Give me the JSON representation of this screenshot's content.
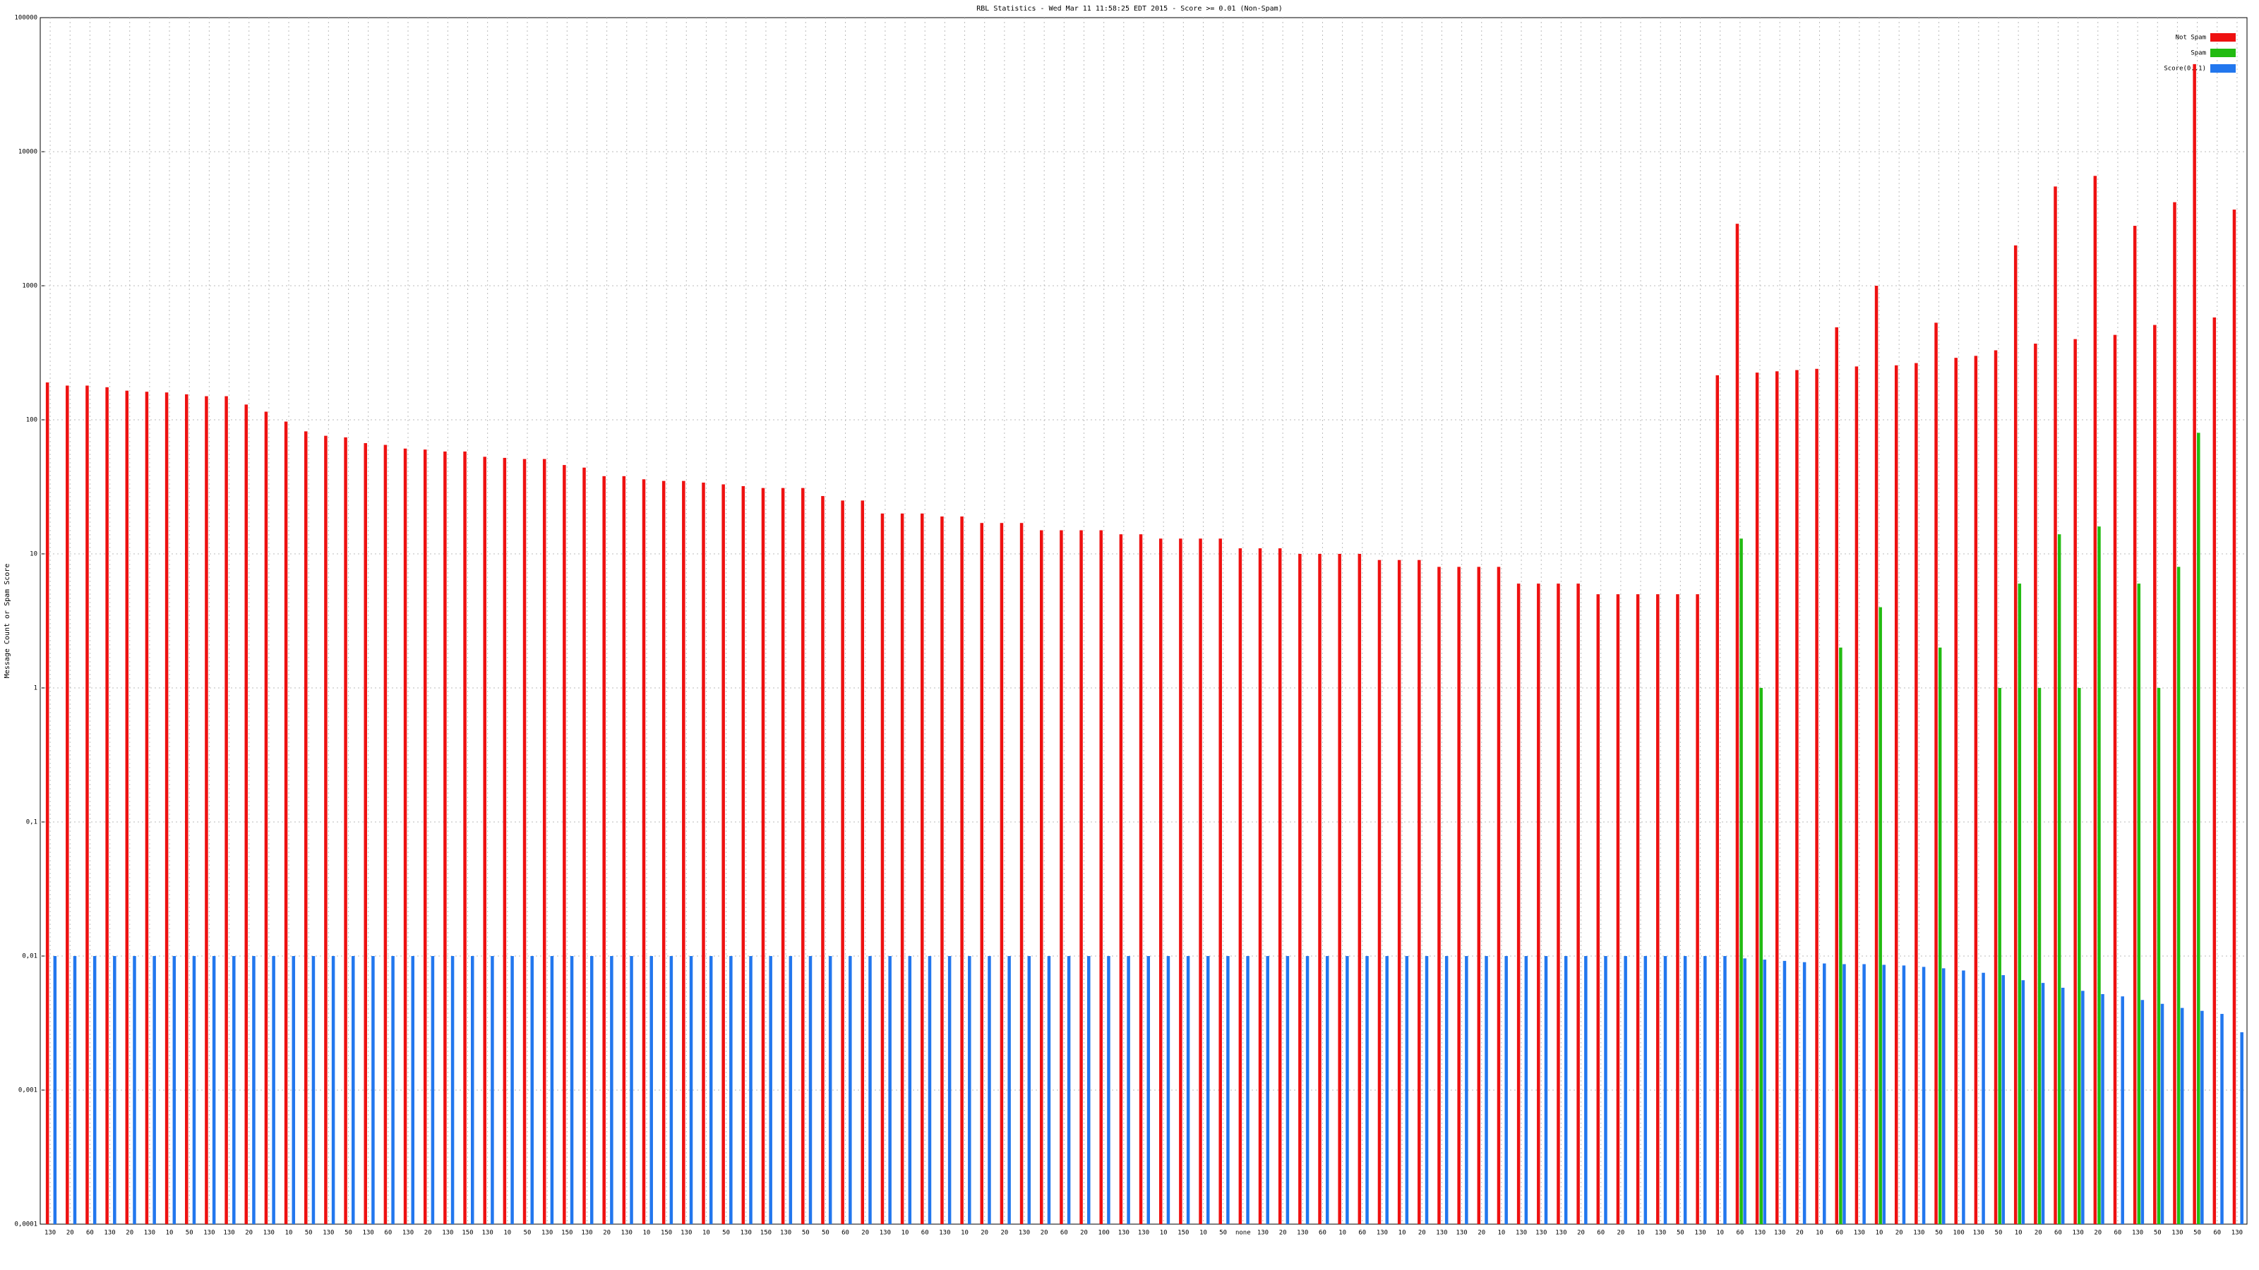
{
  "chart_data": {
    "type": "bar",
    "title": "RBL Statistics - Wed Mar 11 11:58:25 EDT 2015 - Score >= 0.01 (Non-Spam)",
    "y_label": "Message Count or Spam Score",
    "log_scale": true,
    "grid": true,
    "legend": "top-right",
    "ylim": [
      0.0001,
      100000
    ],
    "yticks": [
      {
        "value": 0.0001,
        "label": "0,0001"
      },
      {
        "value": 0.001,
        "label": "0,001"
      },
      {
        "value": 0.01,
        "label": "0,01"
      },
      {
        "value": 0.1,
        "label": "0,1"
      },
      1,
      10,
      100,
      1000,
      10000,
      100000
    ],
    "categories": [
      "130",
      "20",
      "60",
      "130",
      "20",
      "130",
      "10",
      "50",
      "130",
      "130",
      "20",
      "130",
      "10",
      "50",
      "130",
      "50",
      "130",
      "60",
      "130",
      "20",
      "130",
      "150",
      "130",
      "10",
      "50",
      "130",
      "150",
      "130",
      "20",
      "130",
      "10",
      "150",
      "130",
      "10",
      "50",
      "130",
      "150",
      "130",
      "50",
      "50",
      "60",
      "20",
      "130",
      "10",
      "60",
      "130",
      "10",
      "20",
      "20",
      "130",
      "20",
      "60",
      "20",
      "100",
      "130",
      "130",
      "10",
      "150",
      "10",
      "50",
      "none",
      "130",
      "20",
      "130",
      "60",
      "10",
      "60",
      "130",
      "10",
      "20",
      "130",
      "130",
      "20",
      "10",
      "130",
      "130",
      "130",
      "20",
      "60",
      "20",
      "10",
      "130",
      "50",
      "130",
      "10",
      "60",
      "130",
      "130",
      "20",
      "10",
      "60",
      "130",
      "10",
      "20",
      "130",
      "50",
      "100",
      "130",
      "50",
      "10",
      "20",
      "60",
      "130",
      "20",
      "60",
      "130",
      "50",
      "130",
      "50",
      "60",
      "130"
    ],
    "series": [
      {
        "name": "Not Spam",
        "color": "#ee1111",
        "values": [
          190,
          180,
          180,
          175,
          165,
          162,
          160,
          155,
          150,
          150,
          130,
          115,
          97,
          82,
          76,
          74,
          67,
          65,
          61,
          60,
          58,
          58,
          53,
          52,
          51,
          51,
          46,
          44,
          38,
          38,
          36,
          35,
          35,
          34,
          33,
          32,
          31,
          31,
          31,
          27,
          25,
          25,
          20,
          20,
          20,
          19,
          19,
          17,
          17,
          17,
          15,
          15,
          15,
          15,
          14,
          14,
          13,
          13,
          13,
          13,
          11,
          11,
          11,
          10,
          10,
          10,
          10,
          9,
          9,
          9,
          8,
          8,
          8,
          8,
          6,
          6,
          6,
          6,
          5,
          5,
          5,
          5,
          5,
          5,
          215,
          2900,
          225,
          230,
          235,
          240,
          490,
          250,
          1000,
          255,
          265,
          530,
          290,
          300,
          330,
          2000,
          370,
          5500,
          400,
          6600,
          430,
          2800,
          510,
          4200,
          45000,
          580,
          3700
        ]
      },
      {
        "name": "Spam",
        "color": "#22bb11",
        "values": [
          null,
          null,
          null,
          null,
          null,
          null,
          null,
          null,
          null,
          null,
          null,
          null,
          null,
          null,
          null,
          null,
          null,
          null,
          null,
          null,
          null,
          null,
          null,
          null,
          null,
          null,
          null,
          null,
          null,
          null,
          null,
          null,
          null,
          null,
          null,
          null,
          null,
          null,
          null,
          null,
          null,
          null,
          null,
          null,
          null,
          null,
          null,
          null,
          null,
          null,
          null,
          null,
          null,
          null,
          null,
          null,
          null,
          null,
          null,
          null,
          null,
          null,
          null,
          null,
          null,
          null,
          null,
          null,
          null,
          null,
          null,
          null,
          null,
          null,
          null,
          null,
          null,
          null,
          null,
          null,
          null,
          null,
          null,
          null,
          null,
          13,
          1,
          null,
          null,
          null,
          2,
          null,
          4,
          null,
          null,
          2,
          null,
          null,
          1,
          6,
          1,
          14,
          1,
          16,
          null,
          6,
          1,
          8,
          80,
          null,
          null
        ]
      },
      {
        "name": "Score(0..1)",
        "color": "#2277ee",
        "values": [
          0.01,
          0.01,
          0.01,
          0.01,
          0.01,
          0.01,
          0.01,
          0.01,
          0.01,
          0.01,
          0.01,
          0.01,
          0.01,
          0.01,
          0.01,
          0.01,
          0.01,
          0.01,
          0.01,
          0.01,
          0.01,
          0.01,
          0.01,
          0.01,
          0.01,
          0.01,
          0.01,
          0.01,
          0.01,
          0.01,
          0.01,
          0.01,
          0.01,
          0.01,
          0.01,
          0.01,
          0.01,
          0.01,
          0.01,
          0.01,
          0.01,
          0.01,
          0.01,
          0.01,
          0.01,
          0.01,
          0.01,
          0.01,
          0.01,
          0.01,
          0.01,
          0.01,
          0.01,
          0.01,
          0.01,
          0.01,
          0.01,
          0.01,
          0.01,
          0.01,
          0.01,
          0.01,
          0.01,
          0.01,
          0.01,
          0.01,
          0.01,
          0.01,
          0.01,
          0.01,
          0.01,
          0.01,
          0.01,
          0.01,
          0.01,
          0.01,
          0.01,
          0.01,
          0.01,
          0.01,
          0.01,
          0.01,
          0.01,
          0.01,
          0.01,
          0.0096,
          0.0094,
          0.0092,
          0.009,
          0.0088,
          0.0087,
          0.0087,
          0.0086,
          0.0085,
          0.0083,
          0.0081,
          0.0078,
          0.0075,
          0.0072,
          0.0066,
          0.0063,
          0.0058,
          0.0055,
          0.0052,
          0.005,
          0.0047,
          0.0044,
          0.0041,
          0.0039,
          0.0037,
          0.0027
        ]
      }
    ]
  }
}
